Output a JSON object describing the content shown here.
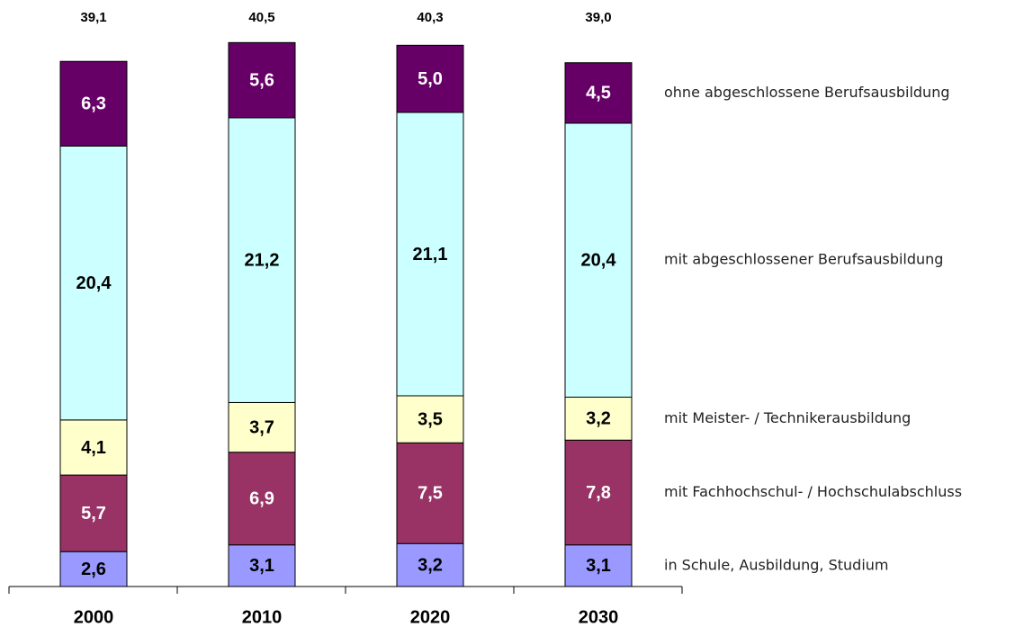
{
  "chart_data": {
    "type": "stacked_bar",
    "categories": [
      "2000",
      "2010",
      "2020",
      "2030"
    ],
    "totals": [
      39.1,
      40.5,
      40.3,
      39.0
    ],
    "total_labels": [
      "39,1",
      "40,5",
      "40,3",
      "39,0"
    ],
    "series": [
      {
        "name": "in Schule, Ausbildung, Studium",
        "color": "#9999ff",
        "label_color": "#000000",
        "values": [
          2.6,
          3.1,
          3.2,
          3.1
        ],
        "value_labels": [
          "2,6",
          "3,1",
          "3,2",
          "3,1"
        ]
      },
      {
        "name": "mit Fachhochschul- / Hochschulabschluss",
        "color": "#993366",
        "label_color": "#ffffff",
        "values": [
          5.7,
          6.9,
          7.5,
          7.8
        ],
        "value_labels": [
          "5,7",
          "6,9",
          "7,5",
          "7,8"
        ]
      },
      {
        "name": "mit Meister- / Technikerausbildung",
        "color": "#ffffcc",
        "label_color": "#000000",
        "values": [
          4.1,
          3.7,
          3.5,
          3.2
        ],
        "value_labels": [
          "4,1",
          "3,7",
          "3,5",
          "3,2"
        ]
      },
      {
        "name": "mit abgeschlossener Berufsausbildung",
        "color": "#ccffff",
        "label_color": "#000000",
        "values": [
          20.4,
          21.2,
          21.1,
          20.4
        ],
        "value_labels": [
          "20,4",
          "21,2",
          "21,1",
          "20,4"
        ]
      },
      {
        "name": "ohne abgeschlossene Berufsausbildung",
        "color": "#660066",
        "label_color": "#ffffff",
        "values": [
          6.3,
          5.6,
          5.0,
          4.5
        ],
        "value_labels": [
          "6,3",
          "5,6",
          "5,0",
          "4,5"
        ]
      }
    ]
  }
}
